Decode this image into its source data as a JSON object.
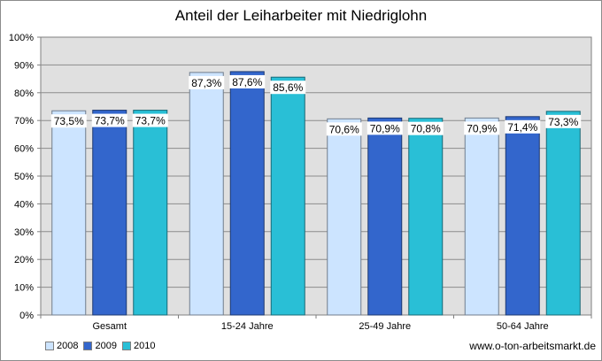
{
  "chart_data": {
    "type": "bar",
    "title": "Anteil der Leiharbeiter mit Niedriglohn",
    "categories": [
      "Gesamt",
      "15-24 Jahre",
      "25-49 Jahre",
      "50-64 Jahre"
    ],
    "series": [
      {
        "name": "2008",
        "values": [
          73.5,
          87.3,
          70.6,
          70.9
        ],
        "labels": [
          "73,5%",
          "87,3%",
          "70,6%",
          "70,9%"
        ],
        "color": "#cce4ff"
      },
      {
        "name": "2009",
        "values": [
          73.7,
          87.6,
          70.9,
          71.4
        ],
        "labels": [
          "73,7%",
          "87,6%",
          "70,9%",
          "71,4%"
        ],
        "color": "#3366cc"
      },
      {
        "name": "2010",
        "values": [
          73.7,
          85.6,
          70.8,
          73.3
        ],
        "labels": [
          "73,7%",
          "85,6%",
          "70,8%",
          "73,3%"
        ],
        "color": "#29bfd6"
      }
    ],
    "yticks": [
      "0%",
      "10%",
      "20%",
      "30%",
      "40%",
      "50%",
      "60%",
      "70%",
      "80%",
      "90%",
      "100%"
    ],
    "ylim": [
      0,
      100
    ],
    "grid": true,
    "legend_position": "bottom-left",
    "plot_background": "#e0e0e0"
  },
  "source_text": "www.o-ton-arbeitsmarkt.de"
}
